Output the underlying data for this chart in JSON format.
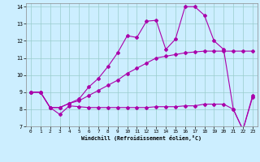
{
  "bg_color": "#cceeff",
  "line_color": "#aa00aa",
  "grid_color": "#99cccc",
  "xlim": [
    -0.5,
    23.5
  ],
  "ylim": [
    7,
    14.2
  ],
  "yticks": [
    7,
    8,
    9,
    10,
    11,
    12,
    13,
    14
  ],
  "xticks": [
    0,
    1,
    2,
    3,
    4,
    5,
    6,
    7,
    8,
    9,
    10,
    11,
    12,
    13,
    14,
    15,
    16,
    17,
    18,
    19,
    20,
    21,
    22,
    23
  ],
  "line1_x": [
    0,
    1,
    2,
    3,
    4,
    5,
    6,
    7,
    8,
    9,
    10,
    11,
    12,
    13,
    14,
    15,
    16,
    17,
    18,
    19,
    20,
    21,
    22,
    23
  ],
  "line1_y": [
    9,
    9,
    8.1,
    7.7,
    8.2,
    8.15,
    8.1,
    8.1,
    8.1,
    8.1,
    8.1,
    8.1,
    8.1,
    8.15,
    8.15,
    8.15,
    8.2,
    8.2,
    8.3,
    8.3,
    8.3,
    8.0,
    6.8,
    8.7
  ],
  "line2_x": [
    0,
    1,
    2,
    3,
    4,
    5,
    6,
    7,
    8,
    9,
    10,
    11,
    12,
    13,
    14,
    15,
    16,
    17,
    18,
    19,
    20,
    21,
    22,
    23
  ],
  "line2_y": [
    9,
    9,
    8.1,
    8.1,
    8.35,
    8.5,
    8.8,
    9.1,
    9.4,
    9.7,
    10.1,
    10.4,
    10.7,
    11.0,
    11.1,
    11.2,
    11.3,
    11.35,
    11.4,
    11.4,
    11.4,
    11.4,
    11.4,
    11.4
  ],
  "line3_x": [
    0,
    1,
    2,
    3,
    4,
    5,
    6,
    7,
    8,
    9,
    10,
    11,
    12,
    13,
    14,
    15,
    16,
    17,
    18,
    19,
    20,
    21,
    22,
    23
  ],
  "line3_y": [
    9.0,
    9.0,
    8.1,
    8.1,
    8.35,
    8.6,
    9.3,
    9.8,
    10.5,
    11.3,
    12.3,
    12.2,
    13.15,
    13.2,
    11.5,
    12.1,
    14.0,
    14.0,
    13.5,
    12.0,
    11.5,
    8.0,
    6.8,
    8.8
  ],
  "xlabel": "Windchill (Refroidissement éolien,°C)",
  "marker": "D",
  "markersize": 2.0,
  "linewidth": 0.8
}
